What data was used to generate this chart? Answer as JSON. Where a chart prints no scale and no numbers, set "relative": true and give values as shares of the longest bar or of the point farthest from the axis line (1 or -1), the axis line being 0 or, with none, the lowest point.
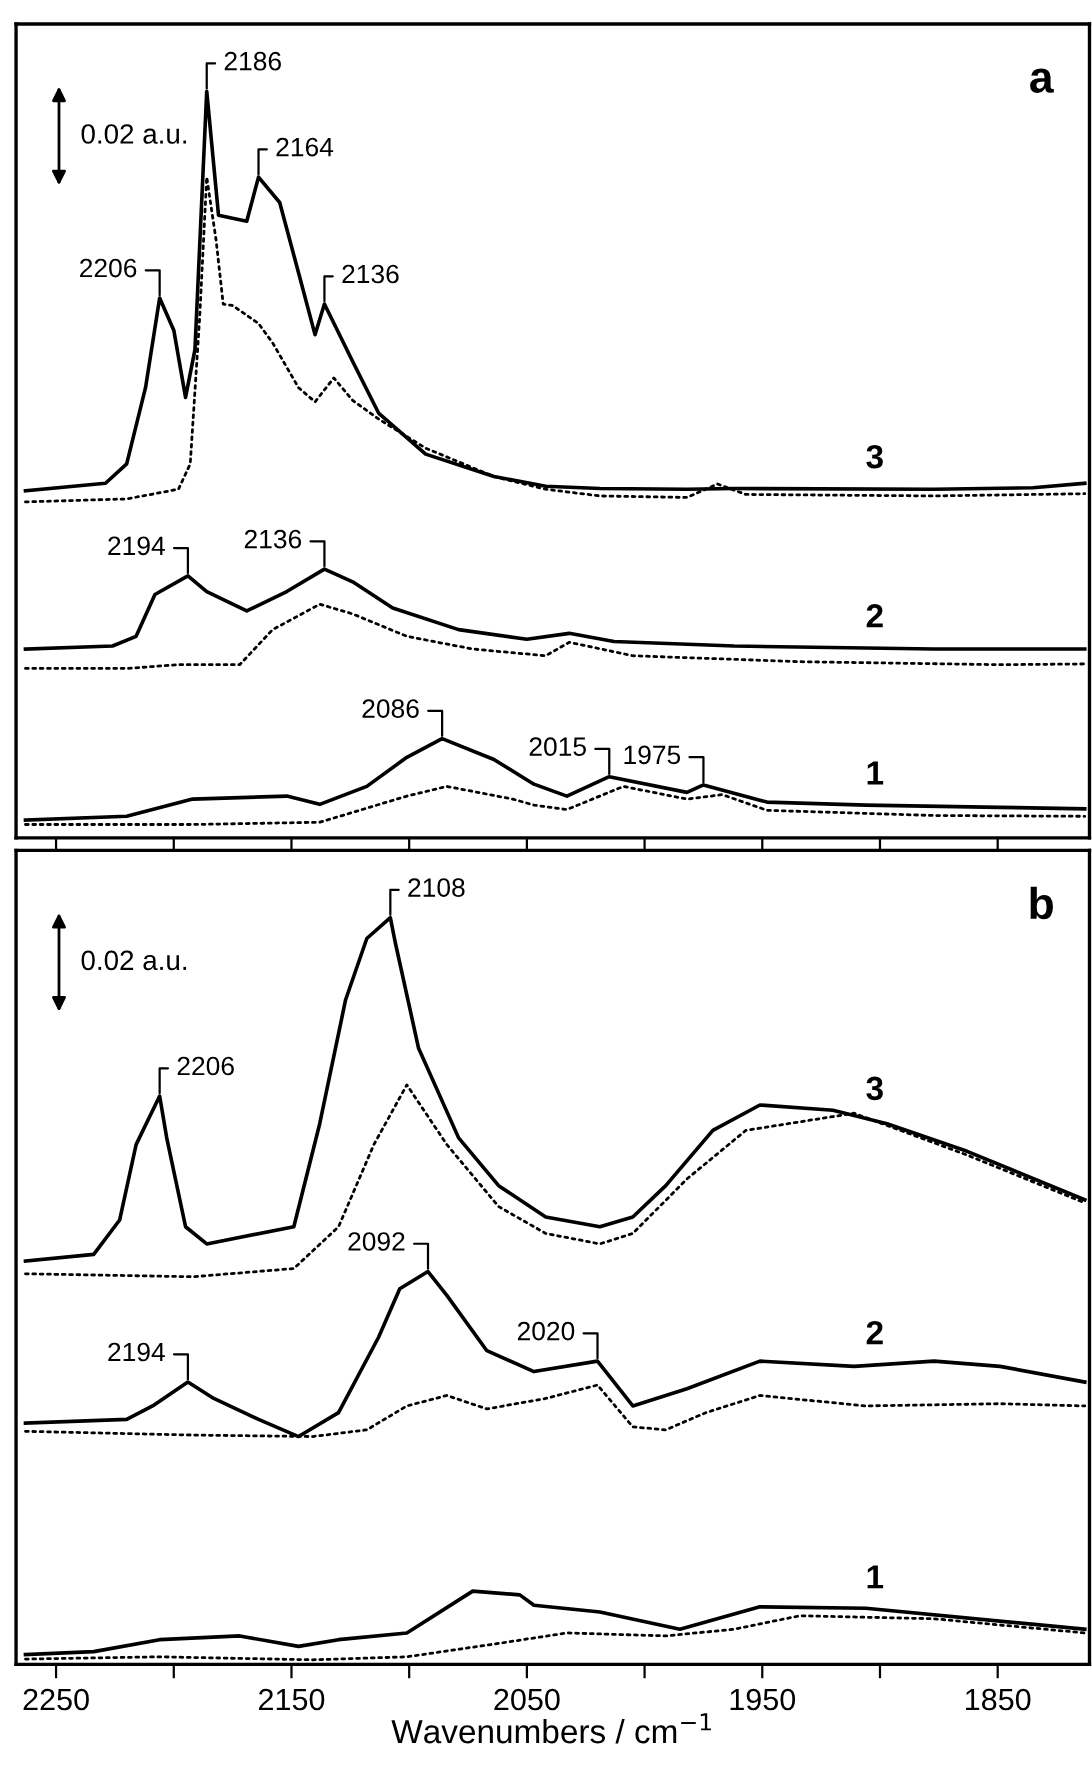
{
  "chart_data": [
    {
      "type": "line",
      "relative": true,
      "xlim": [
        2267,
        1811
      ],
      "xticks": [
        2250,
        {
          "value": 2200,
          "label": null
        },
        2150,
        {
          "value": 2100,
          "label": null
        },
        2050,
        {
          "value": 2000,
          "label": null
        },
        1950,
        {
          "value": 1900,
          "label": null
        },
        1850
      ],
      "tick_labels": false,
      "series": [
        {
          "name": "3",
          "color": "#000000",
          "line_style": "solid",
          "x": [
            2263,
            2229,
            2220,
            2212,
            2206,
            2200,
            2195,
            2191,
            2186,
            2181,
            2169,
            2164,
            2155,
            2147,
            2140,
            2136,
            2124,
            2113,
            2093,
            2064,
            2047,
            2042,
            2019,
            1982,
            1962,
            1877,
            1835,
            1813
          ],
          "values": [
            0.465,
            0.475,
            0.501,
            0.603,
            0.723,
            0.68,
            0.59,
            0.654,
            1.0,
            0.834,
            0.826,
            0.885,
            0.851,
            0.757,
            0.674,
            0.715,
            0.638,
            0.569,
            0.514,
            0.484,
            0.474,
            0.471,
            0.468,
            0.467,
            0.468,
            0.467,
            0.469,
            0.475
          ]
        },
        {
          "color": "#000000",
          "line_style": "dotted",
          "x": [
            2263,
            2220,
            2198,
            2193,
            2189,
            2186,
            2182,
            2179,
            2175,
            2164,
            2158,
            2147,
            2140,
            2132,
            2124,
            2113,
            2093,
            2064,
            2042,
            2019,
            1982,
            1969,
            1957,
            1877,
            1813
          ],
          "values": [
            0.45,
            0.454,
            0.467,
            0.501,
            0.697,
            0.885,
            0.8,
            0.715,
            0.713,
            0.689,
            0.663,
            0.603,
            0.584,
            0.616,
            0.586,
            0.561,
            0.522,
            0.484,
            0.467,
            0.458,
            0.456,
            0.474,
            0.46,
            0.458,
            0.461
          ]
        },
        {
          "name": "2",
          "color": "#000000",
          "line_style": "solid",
          "x": [
            2263,
            2226,
            2216,
            2208,
            2194,
            2186,
            2169,
            2152,
            2136,
            2124,
            2107,
            2079,
            2050,
            2032,
            2013,
            1962,
            1877,
            1813
          ],
          "values": [
            0.253,
            0.257,
            0.27,
            0.326,
            0.351,
            0.33,
            0.304,
            0.33,
            0.36,
            0.343,
            0.308,
            0.279,
            0.266,
            0.274,
            0.263,
            0.257,
            0.253,
            0.253
          ]
        },
        {
          "color": "#000000",
          "line_style": "dotted",
          "x": [
            2263,
            2220,
            2198,
            2172,
            2158,
            2138,
            2124,
            2101,
            2073,
            2042,
            2032,
            2005,
            1934,
            1849,
            1813
          ],
          "values": [
            0.227,
            0.227,
            0.232,
            0.232,
            0.279,
            0.313,
            0.3,
            0.27,
            0.253,
            0.244,
            0.262,
            0.244,
            0.236,
            0.232,
            0.233
          ]
        },
        {
          "name": "1",
          "color": "#000000",
          "line_style": "solid",
          "x": [
            2263,
            2220,
            2192,
            2152,
            2138,
            2118,
            2101,
            2086,
            2064,
            2047,
            2033,
            2015,
            1982,
            1975,
            1948,
            1906,
            1849,
            1813
          ],
          "values": [
            0.024,
            0.029,
            0.052,
            0.056,
            0.045,
            0.069,
            0.108,
            0.133,
            0.105,
            0.072,
            0.056,
            0.082,
            0.061,
            0.071,
            0.048,
            0.044,
            0.041,
            0.039
          ]
        },
        {
          "color": "#000000",
          "line_style": "dotted",
          "x": [
            2263,
            2192,
            2138,
            2101,
            2084,
            2056,
            2047,
            2033,
            2009,
            1982,
            1967,
            1948,
            1877,
            1813
          ],
          "values": [
            0.018,
            0.018,
            0.021,
            0.056,
            0.069,
            0.052,
            0.044,
            0.038,
            0.069,
            0.052,
            0.058,
            0.037,
            0.03,
            0.029
          ]
        }
      ],
      "annotations": [
        "a",
        "0.02 a.u.",
        {
          "text": "2206",
          "x": 2206,
          "y": 0.723
        },
        {
          "text": "2186",
          "x": 2186,
          "y": 1.0
        },
        {
          "text": "2164",
          "x": 2164,
          "y": 0.885
        },
        {
          "text": "2136",
          "x": 2136,
          "y": 0.715
        },
        {
          "text": "2194",
          "x": 2194,
          "y": 0.351
        },
        {
          "text": "2136",
          "x": 2136,
          "y": 0.36
        },
        {
          "text": "2086",
          "x": 2086,
          "y": 0.133
        },
        {
          "text": "2015",
          "x": 2015,
          "y": 0.082
        },
        {
          "text": "1975",
          "x": 1975,
          "y": 0.071
        }
      ]
    },
    {
      "type": "line",
      "relative": true,
      "xlim": [
        2267,
        1811
      ],
      "xticks": [
        2250,
        {
          "value": 2200,
          "label": null
        },
        2150,
        {
          "value": 2100,
          "label": null
        },
        2050,
        {
          "value": 2000,
          "label": null
        },
        1950,
        {
          "value": 1900,
          "label": null
        },
        1850
      ],
      "tick_labels": "x",
      "xlabel": "Wavenumbers / cm$^{−1}$",
      "series": [
        {
          "name": "3",
          "color": "#000000",
          "line_style": "solid",
          "x": [
            2263,
            2234,
            2223,
            2216,
            2206,
            2203,
            2195,
            2186,
            2149,
            2138,
            2127,
            2118,
            2108,
            2106,
            2096,
            2079,
            2062,
            2042,
            2019,
            2005,
            1991,
            1971,
            1951,
            1920,
            1897,
            1863,
            1813
          ],
          "values": [
            0.54,
            0.549,
            0.595,
            0.696,
            0.761,
            0.705,
            0.586,
            0.563,
            0.586,
            0.724,
            0.89,
            0.972,
            1.0,
            0.968,
            0.825,
            0.705,
            0.641,
            0.599,
            0.586,
            0.599,
            0.641,
            0.715,
            0.749,
            0.742,
            0.724,
            0.687,
            0.622
          ]
        },
        {
          "color": "#000000",
          "line_style": "dotted",
          "x": [
            2263,
            2192,
            2149,
            2130,
            2115,
            2101,
            2084,
            2062,
            2042,
            2019,
            2005,
            1982,
            1957,
            1911,
            1863,
            1813
          ],
          "values": [
            0.523,
            0.519,
            0.53,
            0.586,
            0.696,
            0.776,
            0.696,
            0.613,
            0.577,
            0.563,
            0.577,
            0.65,
            0.715,
            0.738,
            0.682,
            0.618
          ]
        },
        {
          "name": "2",
          "color": "#000000",
          "line_style": "solid",
          "x": [
            2263,
            2220,
            2209,
            2194,
            2183,
            2164,
            2147,
            2130,
            2113,
            2104,
            2092,
            2084,
            2067,
            2047,
            2020,
            2005,
            1982,
            1951,
            1911,
            1877,
            1849,
            1813
          ],
          "values": [
            0.323,
            0.328,
            0.346,
            0.378,
            0.356,
            0.328,
            0.305,
            0.337,
            0.438,
            0.503,
            0.526,
            0.494,
            0.42,
            0.392,
            0.406,
            0.346,
            0.369,
            0.406,
            0.399,
            0.406,
            0.399,
            0.378
          ]
        },
        {
          "color": "#000000",
          "line_style": "dotted",
          "x": [
            2263,
            2192,
            2141,
            2118,
            2101,
            2084,
            2067,
            2042,
            2020,
            2005,
            1991,
            1974,
            1951,
            1906,
            1849,
            1813
          ],
          "values": [
            0.312,
            0.307,
            0.305,
            0.314,
            0.346,
            0.36,
            0.342,
            0.356,
            0.374,
            0.318,
            0.314,
            0.337,
            0.36,
            0.346,
            0.349,
            0.346
          ]
        },
        {
          "name": "1",
          "color": "#000000",
          "line_style": "solid",
          "x": [
            2263,
            2234,
            2206,
            2172,
            2147,
            2130,
            2101,
            2073,
            2053,
            2047,
            2019,
            1985,
            1951,
            1906,
            1813
          ],
          "values": [
            0.013,
            0.017,
            0.033,
            0.038,
            0.024,
            0.033,
            0.042,
            0.098,
            0.093,
            0.079,
            0.07,
            0.047,
            0.077,
            0.075,
            0.047
          ]
        },
        {
          "color": "#000000",
          "line_style": "dotted",
          "x": [
            2263,
            2206,
            2141,
            2101,
            2062,
            2033,
            1991,
            1962,
            1934,
            1877,
            1813
          ],
          "values": [
            0.007,
            0.01,
            0.006,
            0.01,
            0.028,
            0.042,
            0.038,
            0.047,
            0.065,
            0.061,
            0.042
          ]
        }
      ],
      "annotations": [
        "b",
        "0.02 a.u.",
        {
          "text": "2206",
          "x": 2206,
          "y": 0.761
        },
        {
          "text": "2108",
          "x": 2108,
          "y": 1.0
        },
        {
          "text": "2194",
          "x": 2194,
          "y": 0.378
        },
        {
          "text": "2092",
          "x": 2092,
          "y": 0.526
        },
        {
          "text": "2020",
          "x": 2020,
          "y": 0.406
        }
      ]
    }
  ]
}
